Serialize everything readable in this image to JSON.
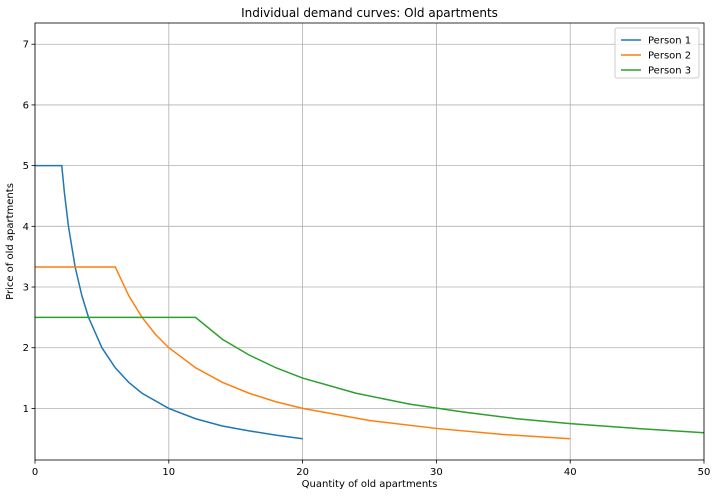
{
  "chart_data": {
    "type": "line",
    "title": "Individual demand curves: Old apartments",
    "xlabel": "Quantity of old apartments",
    "ylabel": "Price of old apartments",
    "xlim": [
      0,
      50
    ],
    "ylim": [
      0.15,
      7.35
    ],
    "xticks": [
      0,
      10,
      20,
      30,
      40,
      50
    ],
    "yticks": [
      1,
      2,
      3,
      4,
      5,
      6,
      7
    ],
    "grid": true,
    "legend_position": "top-right",
    "series": [
      {
        "name": "Person 1",
        "color": "#1f77b4",
        "x": [
          0,
          1,
          2,
          2.2,
          2.5,
          3,
          3.5,
          4,
          5,
          6,
          7,
          8,
          10,
          12,
          14,
          16,
          18,
          20
        ],
        "y": [
          5.0,
          5.0,
          5.0,
          4.55,
          4.0,
          3.33,
          2.86,
          2.5,
          2.0,
          1.67,
          1.43,
          1.25,
          1.0,
          0.83,
          0.71,
          0.63,
          0.56,
          0.5
        ]
      },
      {
        "name": "Person 2",
        "color": "#ff7f0e",
        "x": [
          0,
          2,
          4,
          6,
          7,
          8,
          9,
          10,
          12,
          14,
          16,
          18,
          20,
          25,
          30,
          35,
          40
        ],
        "y": [
          3.33,
          3.33,
          3.33,
          3.33,
          2.86,
          2.5,
          2.22,
          2.0,
          1.67,
          1.43,
          1.25,
          1.11,
          1.0,
          0.8,
          0.67,
          0.57,
          0.5
        ]
      },
      {
        "name": "Person 3",
        "color": "#2ca02c",
        "x": [
          0,
          4,
          8,
          12,
          14,
          16,
          18,
          20,
          24,
          28,
          32,
          36,
          40,
          45,
          50
        ],
        "y": [
          2.5,
          2.5,
          2.5,
          2.5,
          2.14,
          1.88,
          1.67,
          1.5,
          1.25,
          1.07,
          0.94,
          0.83,
          0.75,
          0.67,
          0.6
        ]
      }
    ]
  }
}
